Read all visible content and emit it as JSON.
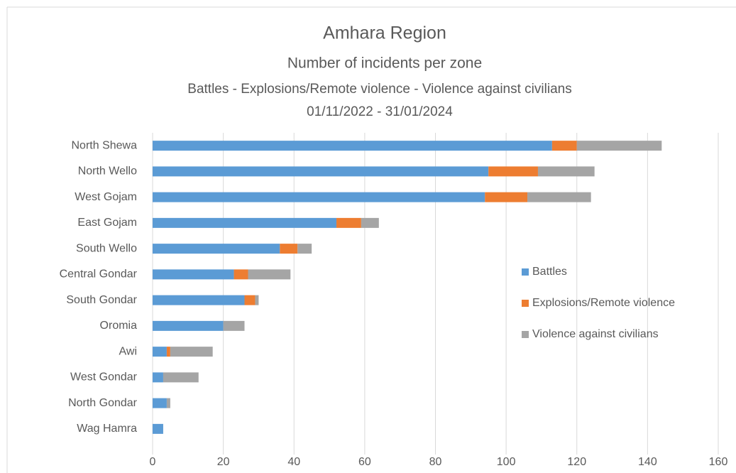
{
  "chart_data": {
    "type": "stacked-barh",
    "title": "Amhara Region",
    "subtitle": [
      "Number of incidents per zone",
      "Battles - Explosions/Remote violence - Violence against civilians",
      "01/11/2022 - 31/01/2024"
    ],
    "categories": [
      "North Shewa",
      "North Wello",
      "West Gojam",
      "East Gojam",
      "South Wello",
      "Central Gondar",
      "South Gondar",
      "Oromia",
      "Awi",
      "West Gondar",
      "North Gondar",
      "Wag Hamra"
    ],
    "series": [
      {
        "name": "Battles",
        "color": "#5b9bd5",
        "values": [
          113,
          95,
          94,
          52,
          36,
          23,
          26,
          20,
          4,
          3,
          4,
          3
        ]
      },
      {
        "name": "Explosions/Remote violence",
        "color": "#ed7d31",
        "values": [
          7,
          14,
          12,
          7,
          5,
          4,
          3,
          0,
          1,
          0,
          0,
          0
        ]
      },
      {
        "name": "Violence against civilians",
        "color": "#a5a5a5",
        "values": [
          24,
          16,
          18,
          5,
          4,
          12,
          1,
          6,
          12,
          10,
          1,
          0
        ]
      }
    ],
    "xlim": [
      0,
      160
    ],
    "xticks": [
      0,
      20,
      40,
      60,
      80,
      100,
      120,
      140,
      160
    ],
    "grid": true,
    "legend": "right"
  }
}
